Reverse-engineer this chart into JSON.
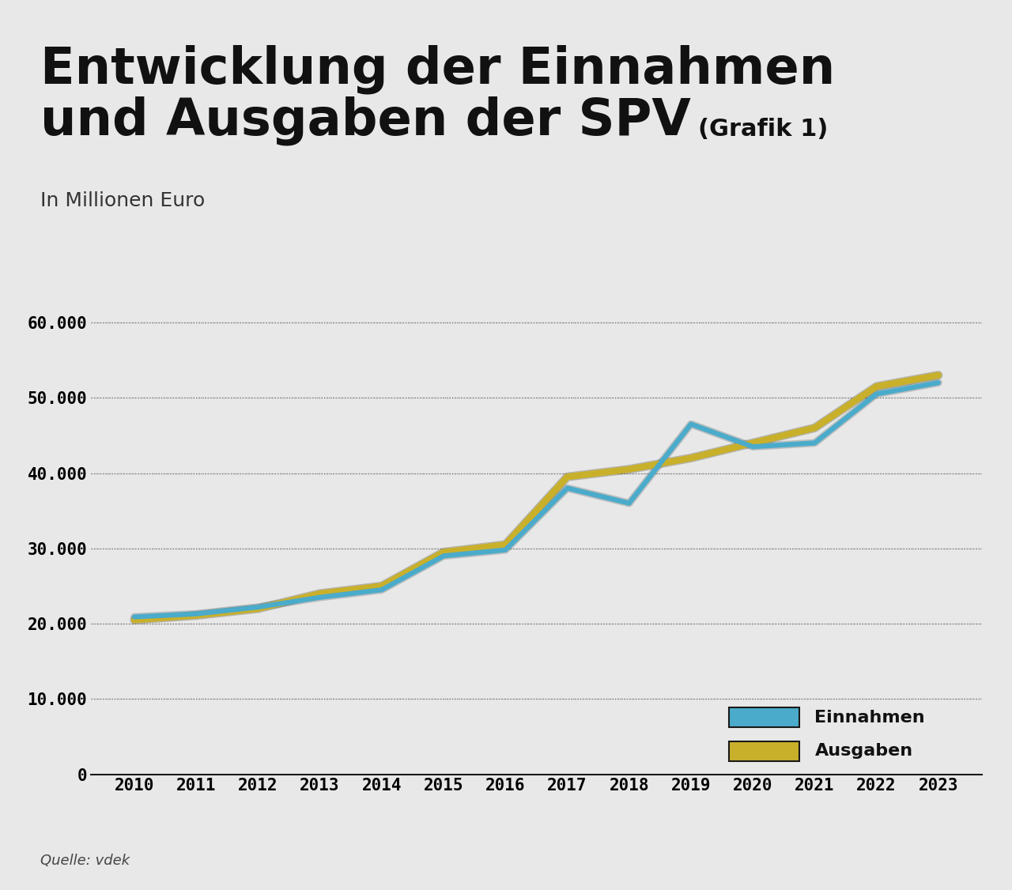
{
  "title_main": "Entwicklung der Einnahmen\nund Ausgaben der SPV",
  "title_suffix": "(Grafik 1)",
  "subtitle": "In Millionen Euro",
  "source": "Quelle: vdek",
  "years": [
    2010,
    2011,
    2012,
    2013,
    2014,
    2015,
    2016,
    2017,
    2018,
    2019,
    2020,
    2021,
    2022,
    2023
  ],
  "einnahmen": [
    20900,
    21300,
    22200,
    23500,
    24500,
    29000,
    29800,
    38000,
    36000,
    46500,
    43500,
    44000,
    50500,
    52000
  ],
  "ausgaben": [
    20500,
    21100,
    22000,
    24000,
    25000,
    29500,
    30500,
    39500,
    40500,
    42000,
    44000,
    46000,
    51500,
    53000
  ],
  "color_einnahmen": "#4AABCB",
  "color_ausgaben": "#C9B02A",
  "background_color": "#E8E8E8",
  "ylim": [
    0,
    65000
  ],
  "yticks": [
    0,
    10000,
    20000,
    30000,
    40000,
    50000,
    60000
  ],
  "ytick_labels": [
    "0",
    "10.000",
    "20.000",
    "30.000",
    "40.000",
    "50.000",
    "60.000"
  ],
  "legend_einnahmen": "Einnahmen",
  "legend_ausgaben": "Ausgaben",
  "line_width": 4.5,
  "title_fontsize": 46,
  "suffix_fontsize": 22,
  "subtitle_fontsize": 18,
  "axis_fontsize": 15,
  "legend_fontsize": 16,
  "source_fontsize": 13
}
